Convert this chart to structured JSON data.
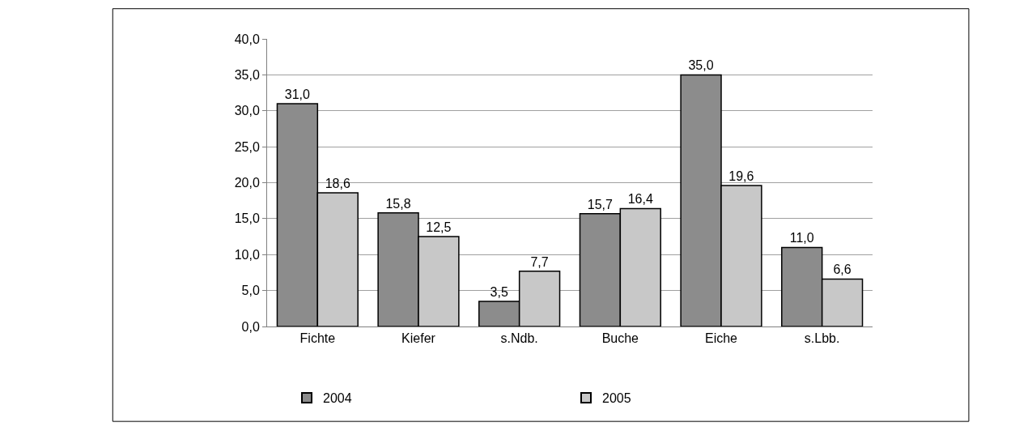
{
  "chart_data": {
    "type": "bar",
    "categories": [
      "Fichte",
      "Kiefer",
      "s.Ndb.",
      "Buche",
      "Eiche",
      "s.Lbb."
    ],
    "series": [
      {
        "name": "2004",
        "color": "#8c8c8c",
        "values": [
          31.0,
          15.8,
          3.5,
          15.7,
          35.0,
          11.0
        ],
        "value_labels": [
          "31,0",
          "15,8",
          "3,5",
          "15,7",
          "35,0",
          "11,0"
        ]
      },
      {
        "name": "2005",
        "color": "#c8c8c8",
        "values": [
          18.6,
          12.5,
          7.7,
          16.4,
          19.6,
          6.6
        ],
        "value_labels": [
          "18,6",
          "12,5",
          "7,7",
          "16,4",
          "19,6",
          "6,6"
        ]
      }
    ],
    "ylim": [
      0,
      40
    ],
    "yticks": [
      {
        "value": 0,
        "label": "0,0"
      },
      {
        "value": 5,
        "label": "5,0"
      },
      {
        "value": 10,
        "label": "10,0"
      },
      {
        "value": 15,
        "label": "15,0"
      },
      {
        "value": 20,
        "label": "20,0"
      },
      {
        "value": 25,
        "label": "25,0"
      },
      {
        "value": 30,
        "label": "30,0"
      },
      {
        "value": 35,
        "label": "35,0"
      },
      {
        "value": 40,
        "label": "40,0"
      }
    ],
    "grid": "y",
    "legend": "bottom"
  }
}
